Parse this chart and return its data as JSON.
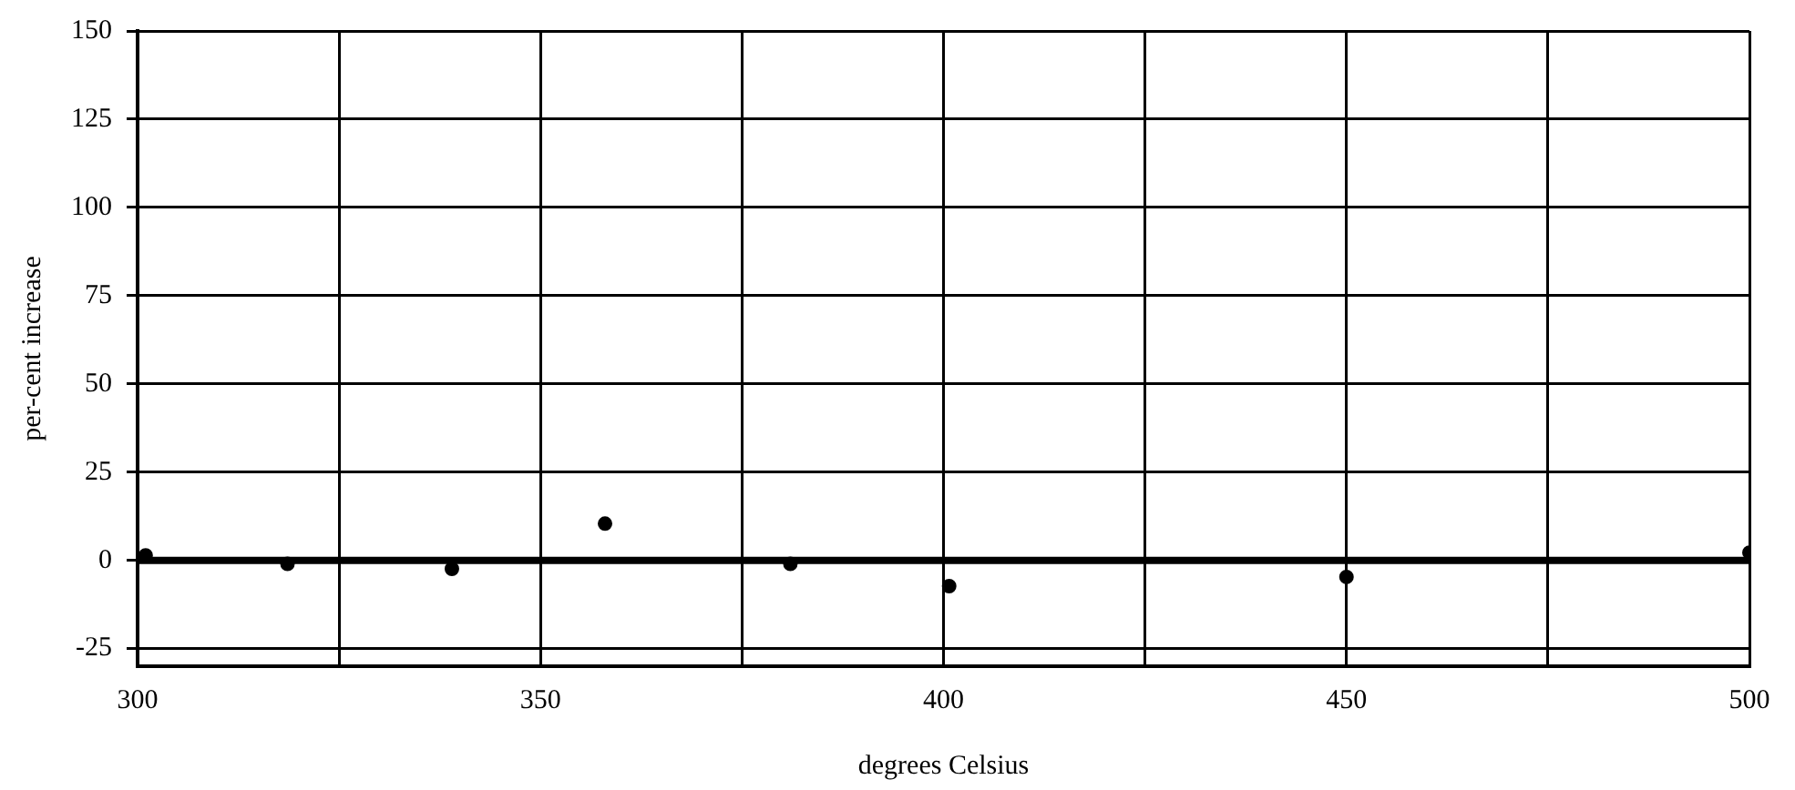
{
  "chart_data": {
    "type": "scatter",
    "xlabel": "degrees Celsius",
    "ylabel": "per-cent increase",
    "x": [
      301,
      318.6,
      339,
      358,
      381,
      400.7,
      450,
      500
    ],
    "series": [
      {
        "color": "#000000",
        "values": [
          1.4,
          -1,
          -2.4,
          10.4,
          -1,
          -7.3,
          -4.7,
          2.2
        ]
      }
    ],
    "xlim": [
      300,
      500
    ],
    "xticks": [
      300,
      {
        "value": 325,
        "label": null
      },
      350,
      {
        "value": 375,
        "label": null
      },
      400,
      {
        "value": 425,
        "label": null
      },
      450,
      {
        "value": 475,
        "label": null
      },
      500
    ],
    "ylim": [
      -30,
      150
    ],
    "yticks": [
      -25,
      0,
      25,
      50,
      75,
      100,
      125,
      150
    ],
    "grid": true,
    "legend": false,
    "marker": "circle",
    "ref_lines": [
      {
        "axis": "y",
        "value": 0,
        "color": "#000000"
      }
    ]
  }
}
